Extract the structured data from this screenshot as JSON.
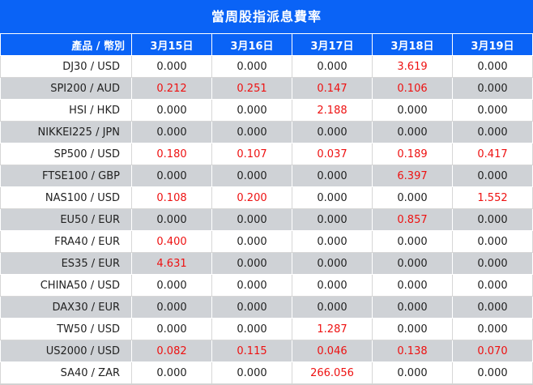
{
  "title": "當周股指派息費率",
  "header": {
    "product": "產品 / 幣別",
    "dates": [
      "3月15日",
      "3月16日",
      "3月17日",
      "3月18日",
      "3月19日"
    ]
  },
  "rows": [
    {
      "product": "DJ30 / USD",
      "values": [
        "0.000",
        "0.000",
        "0.000",
        "3.619",
        "0.000"
      ]
    },
    {
      "product": "SPI200 / AUD",
      "values": [
        "0.212",
        "0.251",
        "0.147",
        "0.106",
        "0.000"
      ]
    },
    {
      "product": "HSI / HKD",
      "values": [
        "0.000",
        "0.000",
        "2.188",
        "0.000",
        "0.000"
      ]
    },
    {
      "product": "NIKKEI225 / JPN",
      "values": [
        "0.000",
        "0.000",
        "0.000",
        "0.000",
        "0.000"
      ]
    },
    {
      "product": "SP500 / USD",
      "values": [
        "0.180",
        "0.107",
        "0.037",
        "0.189",
        "0.417"
      ]
    },
    {
      "product": "FTSE100 / GBP",
      "values": [
        "0.000",
        "0.000",
        "0.000",
        "6.397",
        "0.000"
      ]
    },
    {
      "product": "NAS100 / USD",
      "values": [
        "0.108",
        "0.200",
        "0.000",
        "0.000",
        "1.552"
      ]
    },
    {
      "product": "EU50 / EUR",
      "values": [
        "0.000",
        "0.000",
        "0.000",
        "0.857",
        "0.000"
      ]
    },
    {
      "product": "FRA40 / EUR",
      "values": [
        "0.400",
        "0.000",
        "0.000",
        "0.000",
        "0.000"
      ]
    },
    {
      "product": "ES35 / EUR",
      "values": [
        "4.631",
        "0.000",
        "0.000",
        "0.000",
        "0.000"
      ]
    },
    {
      "product": "CHINA50 / USD",
      "values": [
        "0.000",
        "0.000",
        "0.000",
        "0.000",
        "0.000"
      ]
    },
    {
      "product": "DAX30 / EUR",
      "values": [
        "0.000",
        "0.000",
        "0.000",
        "0.000",
        "0.000"
      ]
    },
    {
      "product": "TW50 / USD",
      "values": [
        "0.000",
        "0.000",
        "1.287",
        "0.000",
        "0.000"
      ]
    },
    {
      "product": "US2000 / USD",
      "values": [
        "0.082",
        "0.115",
        "0.046",
        "0.138",
        "0.070"
      ]
    },
    {
      "product": "SA40 / ZAR",
      "values": [
        "0.000",
        "0.000",
        "266.056",
        "0.000",
        "0.000"
      ]
    }
  ],
  "colors": {
    "header_bg": "#0a63f6",
    "header_text": "#ffffff",
    "alt_row_bg": "#cfd2d6",
    "positive_value": "#ee1111",
    "zero_value": "#222222"
  }
}
